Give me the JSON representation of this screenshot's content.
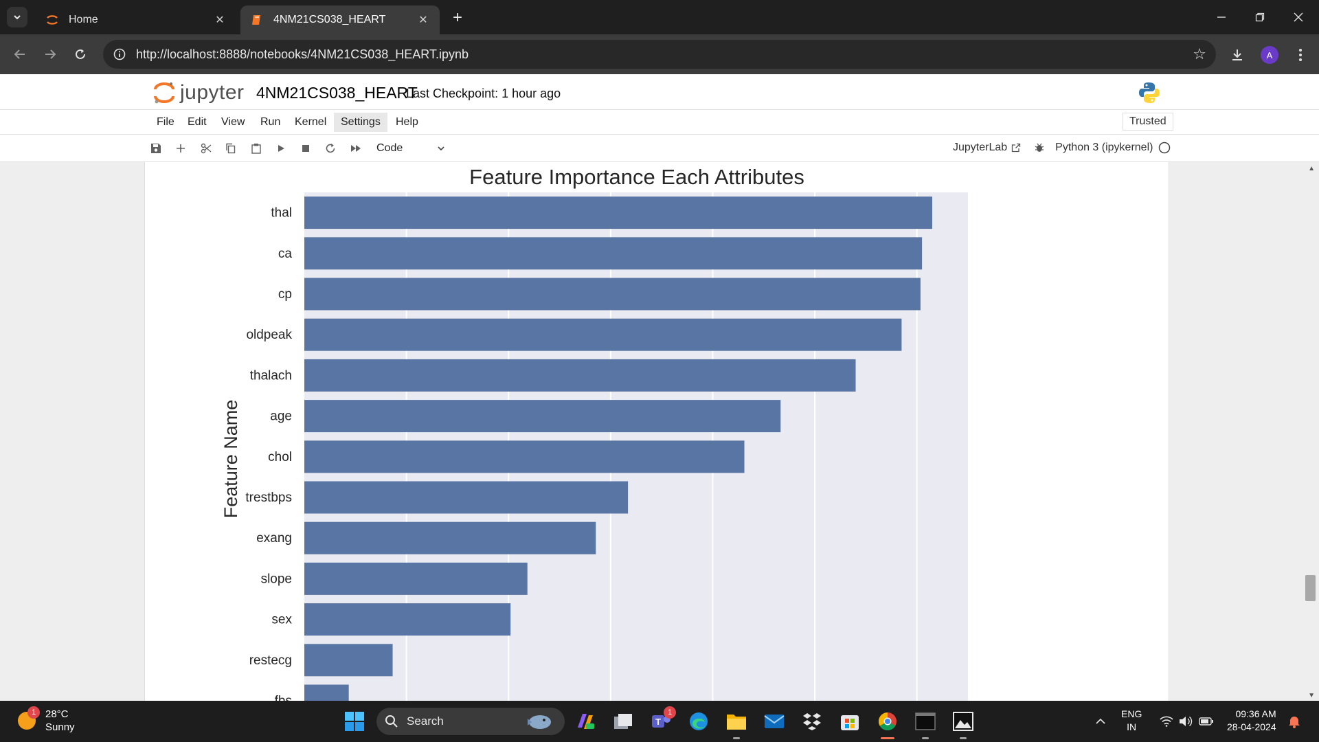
{
  "browser": {
    "tabs": [
      {
        "title": "Home",
        "active": false
      },
      {
        "title": "4NM21CS038_HEART",
        "active": true
      }
    ],
    "url": "http://localhost:8888/notebooks/4NM21CS038_HEART.ipynb",
    "profile_initial": "A"
  },
  "jupyter": {
    "logo_text": "jupyter",
    "notebook_name": "4NM21CS038_HEART",
    "checkpoint": "Last Checkpoint: 1 hour ago",
    "menu": [
      "File",
      "Edit",
      "View",
      "Run",
      "Kernel",
      "Settings",
      "Help"
    ],
    "trusted": "Trusted",
    "cell_type": "Code",
    "jupyterlab_link": "JupyterLab",
    "kernel_name": "Python 3 (ipykernel)"
  },
  "chart_data": {
    "type": "bar",
    "orientation": "horizontal",
    "title": "Feature Importance Each Attributes",
    "ylabel": "Feature Name",
    "xlabel": "",
    "categories": [
      "thal",
      "ca",
      "cp",
      "oldpeak",
      "thalach",
      "age",
      "chol",
      "trestbps",
      "exang",
      "slope",
      "sex",
      "restecg",
      "fbs"
    ],
    "values": [
      0.123,
      0.121,
      0.1207,
      0.117,
      0.108,
      0.0933,
      0.0862,
      0.0634,
      0.0571,
      0.0437,
      0.0404,
      0.0173,
      0.0087
    ],
    "xlim": [
      0,
      0.13
    ],
    "bar_color": "#5975a4",
    "background": "#eaeaf2",
    "grid": true
  },
  "taskbar": {
    "weather_temp": "28°C",
    "weather_desc": "Sunny",
    "weather_badge": "1",
    "search_placeholder": "Search",
    "teams_badge": "1",
    "lang_line1": "ENG",
    "lang_line2": "IN",
    "time": "09:36 AM",
    "date": "28-04-2024"
  }
}
